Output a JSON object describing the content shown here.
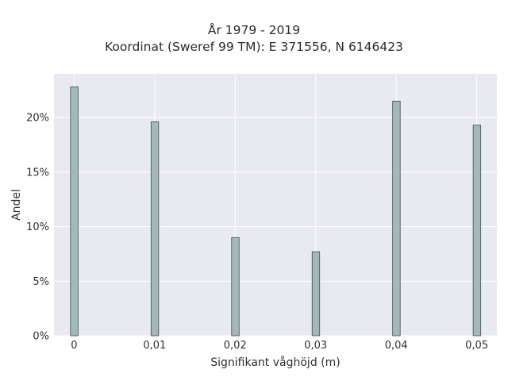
{
  "chart_data": {
    "type": "bar",
    "title": "År 1979 - 2019",
    "subtitle": "Koordinat (Sweref 99 TM): E 371556, N 6146423",
    "xlabel": "Signifikant våghöjd (m)",
    "ylabel": "Andel",
    "x": [
      0,
      0.01,
      0.02,
      0.03,
      0.04,
      0.05
    ],
    "x_tick_labels": [
      "0",
      "0,01",
      "0,02",
      "0,03",
      "0,04",
      "0,05"
    ],
    "values": [
      22.8,
      19.6,
      9.0,
      7.7,
      21.5,
      19.3
    ],
    "y_ticks": [
      0,
      5,
      10,
      15,
      20
    ],
    "y_tick_labels": [
      "0%",
      "5%",
      "10%",
      "15%",
      "20%"
    ],
    "xlim": [
      -0.0025,
      0.0525
    ],
    "ylim": [
      0,
      24
    ],
    "grid": true,
    "colors": {
      "bar_fill": "#a2b9ba",
      "bar_stroke": "#3f4f4f",
      "plot_bg": "#e9e9f1",
      "grid": "#ffffff"
    }
  }
}
